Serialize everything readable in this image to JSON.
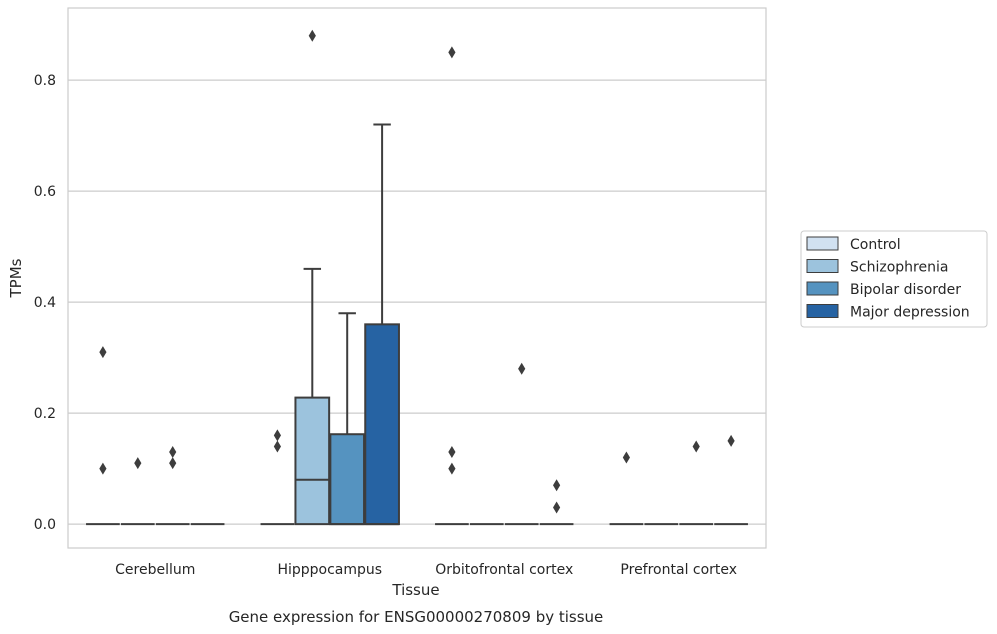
{
  "caption": "Gene expression for ENSG00000270809 by tissue",
  "chart_data": {
    "type": "box",
    "xlabel": "Tissue",
    "ylabel": "TPMs",
    "ylim": [
      -0.043,
      0.93
    ],
    "yticks": [
      0.0,
      0.2,
      0.4,
      0.6,
      0.8
    ],
    "ytick_labels": [
      "0.0",
      "0.2",
      "0.4",
      "0.6",
      "0.8"
    ],
    "grid": "horizontal",
    "legend_position": "right",
    "categories": [
      "Cerebellum",
      "Hipppocampus",
      "Orbitofrontal cortex",
      "Prefrontal cortex"
    ],
    "series": [
      {
        "name": "Control",
        "color": "#d1e1f1",
        "boxes": [
          {
            "q1": 0,
            "median": 0,
            "q3": 0,
            "whisker_low": 0,
            "whisker_high": 0,
            "outliers": [
              0.31,
              0.1
            ]
          },
          {
            "q1": 0,
            "median": 0,
            "q3": 0,
            "whisker_low": 0,
            "whisker_high": 0,
            "outliers": [
              0.16,
              0.14
            ]
          },
          {
            "q1": 0,
            "median": 0,
            "q3": 0,
            "whisker_low": 0,
            "whisker_high": 0,
            "outliers": [
              0.85,
              0.13,
              0.1
            ]
          },
          {
            "q1": 0,
            "median": 0,
            "q3": 0,
            "whisker_low": 0,
            "whisker_high": 0,
            "outliers": [
              0.12
            ]
          }
        ]
      },
      {
        "name": "Schizophrenia",
        "color": "#9cc3dd",
        "boxes": [
          {
            "q1": 0,
            "median": 0,
            "q3": 0,
            "whisker_low": 0,
            "whisker_high": 0,
            "outliers": [
              0.11
            ]
          },
          {
            "q1": 0,
            "median": 0.08,
            "q3": 0.228,
            "whisker_low": 0,
            "whisker_high": 0.46,
            "outliers": [
              0.88
            ]
          },
          {
            "q1": 0,
            "median": 0,
            "q3": 0,
            "whisker_low": 0,
            "whisker_high": 0,
            "outliers": []
          },
          {
            "q1": 0,
            "median": 0,
            "q3": 0,
            "whisker_low": 0,
            "whisker_high": 0,
            "outliers": []
          }
        ]
      },
      {
        "name": "Bipolar disorder",
        "color": "#5593c0",
        "boxes": [
          {
            "q1": 0,
            "median": 0,
            "q3": 0,
            "whisker_low": 0,
            "whisker_high": 0,
            "outliers": [
              0.13,
              0.11
            ]
          },
          {
            "q1": 0,
            "median": 0,
            "q3": 0.162,
            "whisker_low": 0,
            "whisker_high": 0.38,
            "outliers": []
          },
          {
            "q1": 0,
            "median": 0,
            "q3": 0,
            "whisker_low": 0,
            "whisker_high": 0,
            "outliers": [
              0.28
            ]
          },
          {
            "q1": 0,
            "median": 0,
            "q3": 0,
            "whisker_low": 0,
            "whisker_high": 0,
            "outliers": [
              0.14
            ]
          }
        ]
      },
      {
        "name": "Major depression",
        "color": "#2663a3",
        "boxes": [
          {
            "q1": 0,
            "median": 0,
            "q3": 0,
            "whisker_low": 0,
            "whisker_high": 0,
            "outliers": []
          },
          {
            "q1": 0,
            "median": 0,
            "q3": 0.36,
            "whisker_low": 0,
            "whisker_high": 0.72,
            "outliers": []
          },
          {
            "q1": 0,
            "median": 0,
            "q3": 0,
            "whisker_low": 0,
            "whisker_high": 0,
            "outliers": [
              0.07,
              0.03
            ]
          },
          {
            "q1": 0,
            "median": 0,
            "q3": 0,
            "whisker_low": 0,
            "whisker_high": 0,
            "outliers": [
              0.15
            ]
          }
        ]
      }
    ]
  },
  "colors": {
    "background": "#ffffff",
    "grid": "#cccccc",
    "frame": "#cccccc",
    "stroke": "#3d3d3d",
    "text": "#262626"
  }
}
